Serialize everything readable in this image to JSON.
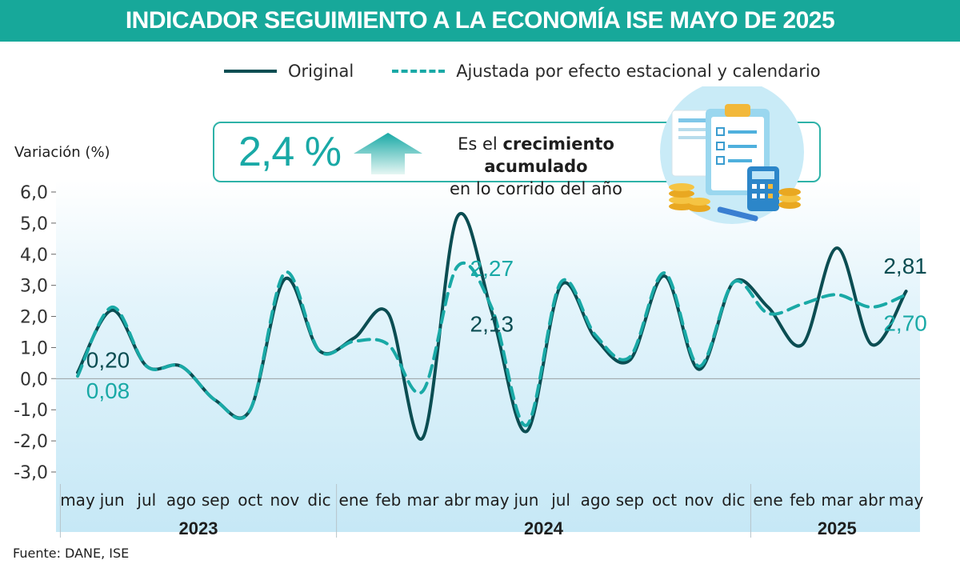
{
  "title": "INDICADOR SEGUIMIENTO A LA ECONOMÍA ISE MAYO DE 2025",
  "legend": {
    "original": "Original",
    "adjusted": "Ajustada por efecto estacional y calendario"
  },
  "kpi": {
    "value": "2,4 %",
    "text_before": "Es el ",
    "text_bold": "crecimiento acumulado",
    "text_after": "en lo corrido del año"
  },
  "source": "Fuente: DANE, ISE",
  "colors": {
    "header": "#17a89a",
    "original": "#0b4d52",
    "adjusted": "#19a9a6"
  },
  "chart_data": {
    "type": "line",
    "ylabel": "Variación (%)",
    "ylim": [
      -3.0,
      6.0
    ],
    "yticks": [
      "6,0",
      "5,0",
      "4,0",
      "3,0",
      "2,0",
      "1,0",
      "0,0",
      "-1,0",
      "-2,0",
      "-3,0"
    ],
    "categories": [
      "may",
      "jun",
      "jul",
      "ago",
      "sep",
      "oct",
      "nov",
      "dic",
      "ene",
      "feb",
      "mar",
      "abr",
      "may",
      "jun",
      "jul",
      "ago",
      "sep",
      "oct",
      "nov",
      "dic",
      "ene",
      "feb",
      "mar",
      "abr",
      "may"
    ],
    "years": [
      {
        "label": "2023",
        "start": 0,
        "end": 7
      },
      {
        "label": "2024",
        "start": 8,
        "end": 19
      },
      {
        "label": "2025",
        "start": 20,
        "end": 24
      }
    ],
    "series": [
      {
        "name": "Original",
        "values": [
          0.2,
          2.2,
          0.4,
          0.4,
          -0.7,
          -1.0,
          3.2,
          0.9,
          1.3,
          2.1,
          -1.9,
          5.2,
          2.13,
          -1.7,
          3.0,
          1.3,
          0.6,
          3.3,
          0.3,
          3.1,
          2.3,
          1.1,
          4.2,
          1.1,
          2.81
        ]
      },
      {
        "name": "Ajustada por efecto estacional y calendario",
        "values": [
          0.08,
          2.3,
          0.4,
          0.4,
          -0.7,
          -1.0,
          3.4,
          0.9,
          1.2,
          1.1,
          -0.4,
          3.6,
          2.27,
          -1.5,
          3.1,
          1.4,
          0.7,
          3.4,
          0.4,
          3.1,
          2.1,
          2.4,
          2.7,
          2.3,
          2.7
        ]
      }
    ],
    "annotations": [
      {
        "label": "0,20",
        "index": 0,
        "series": 0
      },
      {
        "label": "0,08",
        "index": 0,
        "series": 1
      },
      {
        "label": "2,27",
        "index": 12,
        "series": 1
      },
      {
        "label": "2,13",
        "index": 12,
        "series": 0
      },
      {
        "label": "2,81",
        "index": 24,
        "series": 0
      },
      {
        "label": "2,70",
        "index": 24,
        "series": 1
      }
    ]
  }
}
